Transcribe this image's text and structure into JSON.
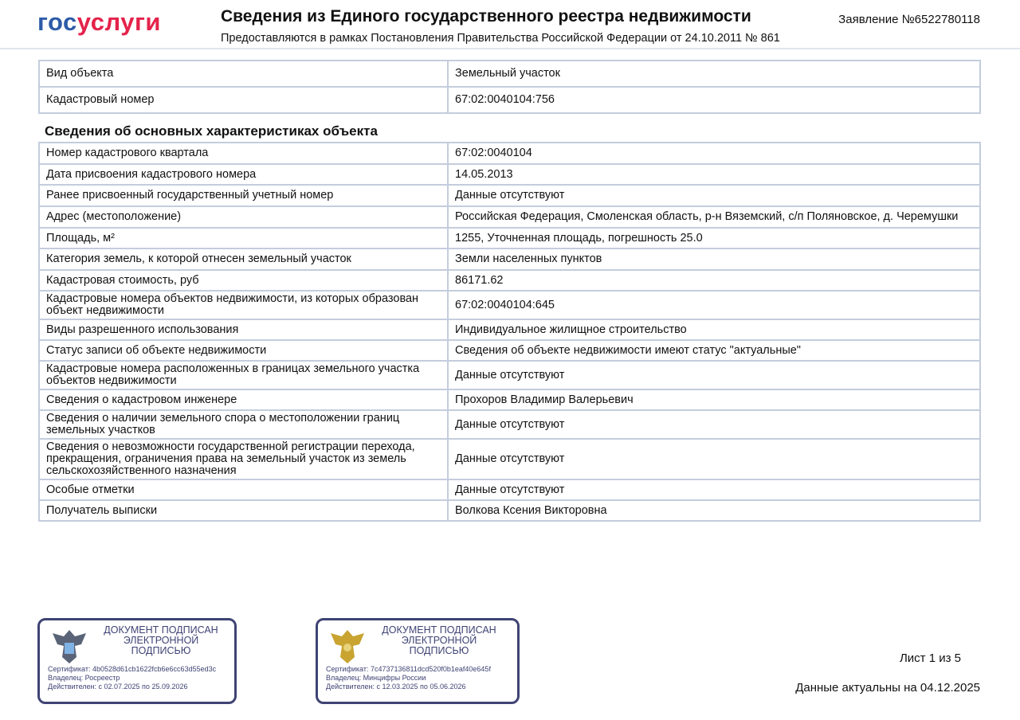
{
  "header": {
    "logo_part1": "гос",
    "logo_part2": "услуги",
    "title": "Сведения из Единого государственного реестра недвижимости",
    "subtitle": "Предоставляются в рамках Постановления Правительства Российской Федерации от 24.10.2011 № 861",
    "application": "Заявление №6522780118"
  },
  "object_table": [
    {
      "label": "Вид объекта",
      "value": "Земельный участок"
    },
    {
      "label": "Кадастровый номер",
      "value": "67:02:0040104:756"
    }
  ],
  "section_title": "Сведения об основных характеристиках объекта",
  "main_table": [
    {
      "label": "Номер кадастрового квартала",
      "value": "67:02:0040104"
    },
    {
      "label": "Дата присвоения кадастрового номера",
      "value": "14.05.2013"
    },
    {
      "label": "Ранее присвоенный государственный учетный номер",
      "value": "Данные отсутствуют"
    },
    {
      "label": "Адрес (местоположение)",
      "value": "Российская Федерация, Смоленская область, р-н Вяземский, с/п Поляновское, д. Черемушки"
    },
    {
      "label": "Площадь, м²",
      "value": "1255, Уточненная площадь, погрешность 25.0"
    },
    {
      "label": "Категория земель, к которой отнесен земельный участок",
      "value": "Земли населенных пунктов"
    },
    {
      "label": "Кадастровая стоимость, руб",
      "value": "86171.62"
    },
    {
      "label": "Кадастровые номера объектов недвижимости, из которых образован объект недвижимости",
      "value": "67:02:0040104:645"
    },
    {
      "label": "Виды разрешенного использования",
      "value": " Индивидуальное жилищное строительство"
    },
    {
      "label": "Статус записи об объекте недвижимости",
      "value": "Сведения об объекте недвижимости имеют статус \"актуальные\""
    },
    {
      "label": "Кадастровые номера расположенных в границах земельного участка объектов недвижимости",
      "value": "Данные отсутствуют"
    },
    {
      "label": "Сведения о кадастровом инженере",
      "value": "Прохоров Владимир Валерьевич"
    },
    {
      "label": "Сведения о наличии земельного спора о местоположении границ земельных участков",
      "value": "Данные отсутствуют"
    },
    {
      "label": "Сведения о невозможности государственной регистрации перехода, прекращения, ограничения права на земельный участок из земель сельскохозяйственного назначения",
      "value": "Данные отсутствуют"
    },
    {
      "label": "Особые отметки",
      "value": "Данные отсутствуют"
    },
    {
      "label": "Получатель выписки",
      "value": "Волкова Ксения Викторовна"
    }
  ],
  "stamps": [
    {
      "heading": "ДОКУМЕНТ ПОДПИСАН ЭЛЕКТРОННОЙ ПОДПИСЬЮ",
      "certificate": "Сертификат: 4b0528d61cb1622fcb6e6cc63d55ed3c",
      "owner": "Владелец: Росреестр",
      "valid": "Действителен: с 02.07.2025 по 25.09.2026",
      "emblem_color": "#4a5a8a"
    },
    {
      "heading": "ДОКУМЕНТ ПОДПИСАН ЭЛЕКТРОННОЙ ПОДПИСЬЮ",
      "certificate": "Сертификат: 7c4737136811dcd520f0b1eaf40e645f",
      "owner": "Владелец: Минцифры России",
      "valid": "Действителен: с 12.03.2025 по 05.06.2026",
      "emblem_color": "#c9a431"
    }
  ],
  "footer": {
    "sheet": "Лист 1 из 5",
    "actual": "Данные актуальны на 04.12.2025"
  }
}
